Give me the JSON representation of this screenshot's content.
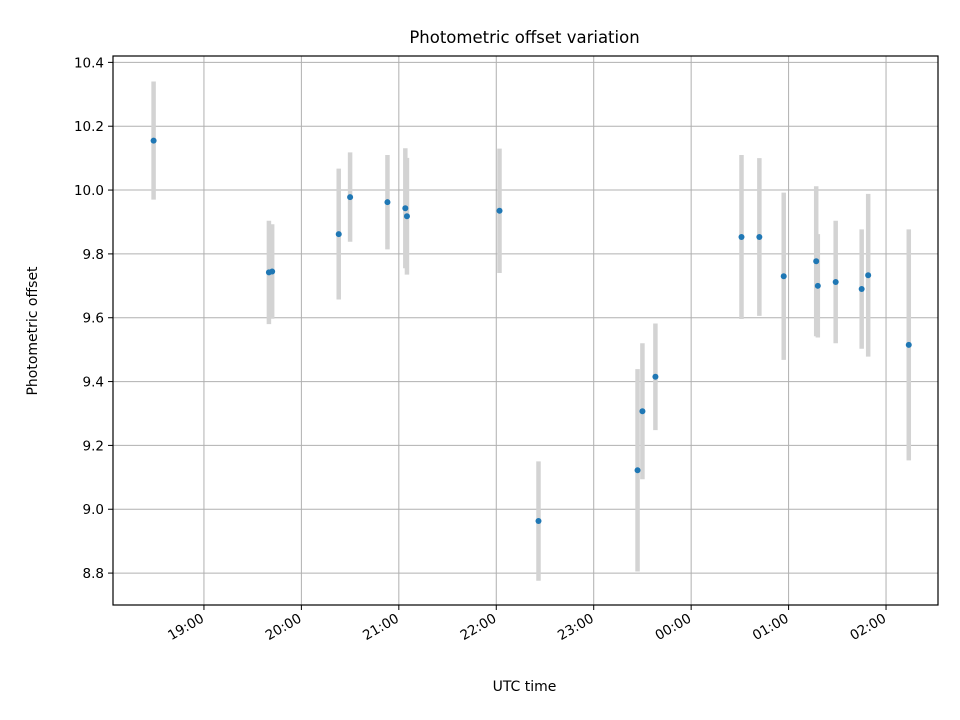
{
  "chart_data": {
    "type": "scatter",
    "title": "Photometric offset variation",
    "xlabel": "UTC time",
    "ylabel": "Photometric offset",
    "x_is_time": true,
    "xlim": [
      "18:04",
      "02:32"
    ],
    "ylim": [
      8.7,
      10.42
    ],
    "x_ticks": [
      "19:00",
      "20:00",
      "21:00",
      "22:00",
      "23:00",
      "00:00",
      "01:00",
      "02:00"
    ],
    "y_ticks": [
      8.8,
      9.0,
      9.2,
      9.4,
      9.6,
      9.8,
      10.0,
      10.2,
      10.4
    ],
    "grid": true,
    "marker_color": "#1f77b4",
    "errorbar_color": "#d3d3d3",
    "points": [
      {
        "time": "18:29",
        "y": 10.155,
        "err": 0.185
      },
      {
        "time": "19:40",
        "y": 9.742,
        "err": 0.162
      },
      {
        "time": "19:42",
        "y": 9.745,
        "err": 0.148
      },
      {
        "time": "20:23",
        "y": 9.862,
        "err": 0.205
      },
      {
        "time": "20:30",
        "y": 9.978,
        "err": 0.14
      },
      {
        "time": "20:53",
        "y": 9.962,
        "err": 0.148
      },
      {
        "time": "21:04",
        "y": 9.943,
        "err": 0.188
      },
      {
        "time": "21:05",
        "y": 9.918,
        "err": 0.183
      },
      {
        "time": "22:02",
        "y": 9.935,
        "err": 0.195
      },
      {
        "time": "22:26",
        "y": 8.963,
        "err": 0.187
      },
      {
        "time": "23:27",
        "y": 9.122,
        "err": 0.317
      },
      {
        "time": "23:30",
        "y": 9.307,
        "err": 0.213
      },
      {
        "time": "23:38",
        "y": 9.415,
        "err": 0.167
      },
      {
        "time": "00:31",
        "y": 9.853,
        "err": 0.257
      },
      {
        "time": "00:42",
        "y": 9.853,
        "err": 0.247
      },
      {
        "time": "00:57",
        "y": 9.73,
        "err": 0.262
      },
      {
        "time": "01:17",
        "y": 9.777,
        "err": 0.235
      },
      {
        "time": "01:18",
        "y": 9.7,
        "err": 0.162
      },
      {
        "time": "01:29",
        "y": 9.712,
        "err": 0.192
      },
      {
        "time": "01:45",
        "y": 9.69,
        "err": 0.187
      },
      {
        "time": "01:49",
        "y": 9.733,
        "err": 0.255
      },
      {
        "time": "02:14",
        "y": 9.515,
        "err": 0.362
      }
    ]
  }
}
